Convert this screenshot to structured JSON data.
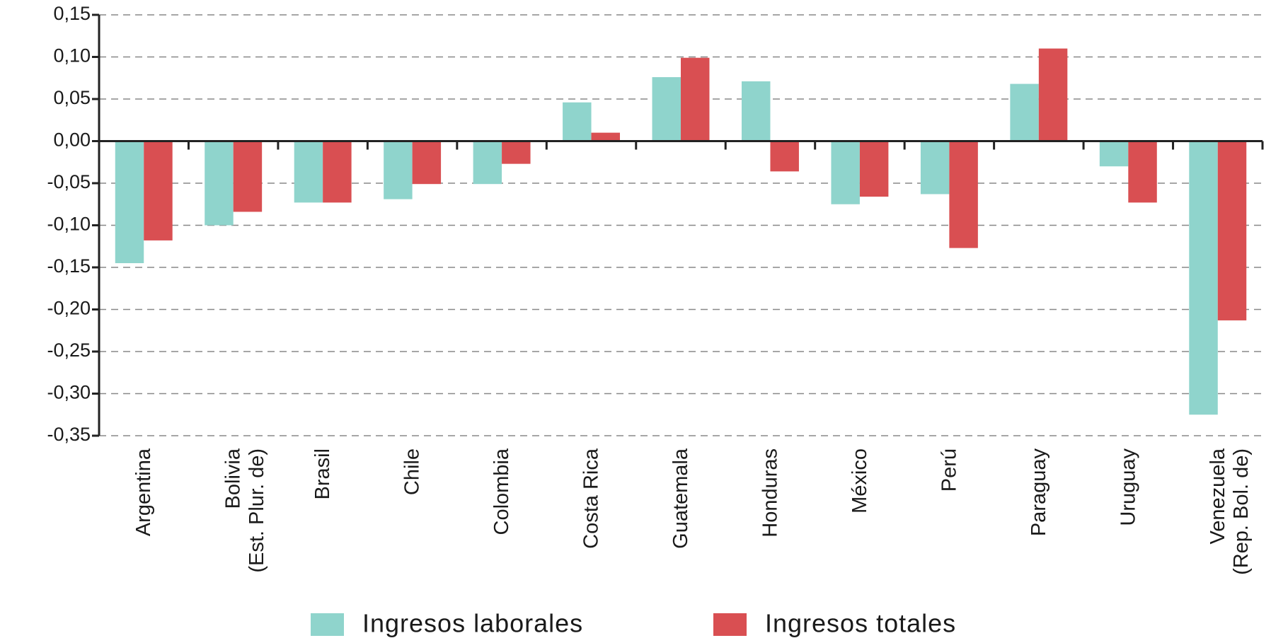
{
  "chart_data": {
    "type": "bar",
    "categories": [
      "Argentina",
      "Bolivia\n(Est. Plur. de)",
      "Brasil",
      "Chile",
      "Colombia",
      "Costa Rica",
      "Guatemala",
      "Honduras",
      "México",
      "Perú",
      "Paraguay",
      "Uruguay",
      "Venezuela\n(Rep. Bol. de)"
    ],
    "series": [
      {
        "name": "Ingresos laborales",
        "color": "#8fd4cc",
        "values": [
          -0.145,
          -0.1,
          -0.073,
          -0.069,
          -0.051,
          0.046,
          0.076,
          0.071,
          -0.075,
          -0.063,
          0.068,
          -0.03,
          -0.325
        ]
      },
      {
        "name": "Ingresos totales",
        "color": "#d94f52",
        "values": [
          -0.118,
          -0.084,
          -0.073,
          -0.051,
          -0.027,
          0.01,
          0.099,
          -0.036,
          -0.066,
          -0.127,
          0.11,
          -0.073,
          -0.213
        ]
      }
    ],
    "ylim": [
      -0.35,
      0.15
    ],
    "yticks": [
      {
        "value": 0.15,
        "label": "0,15"
      },
      {
        "value": 0.1,
        "label": "0,10"
      },
      {
        "value": 0.05,
        "label": "0,05"
      },
      {
        "value": 0,
        "label": "0,00"
      },
      {
        "value": -0.05,
        "label": "-0,05"
      },
      {
        "value": -0.1,
        "label": "-0,10"
      },
      {
        "value": -0.15,
        "label": "-0,15"
      },
      {
        "value": -0.2,
        "label": "-0,20"
      },
      {
        "value": -0.25,
        "label": "-0,25"
      },
      {
        "value": -0.3,
        "label": "-0,30"
      },
      {
        "value": -0.35,
        "label": "-0,35"
      }
    ],
    "grid": true,
    "legend": "bottom"
  }
}
